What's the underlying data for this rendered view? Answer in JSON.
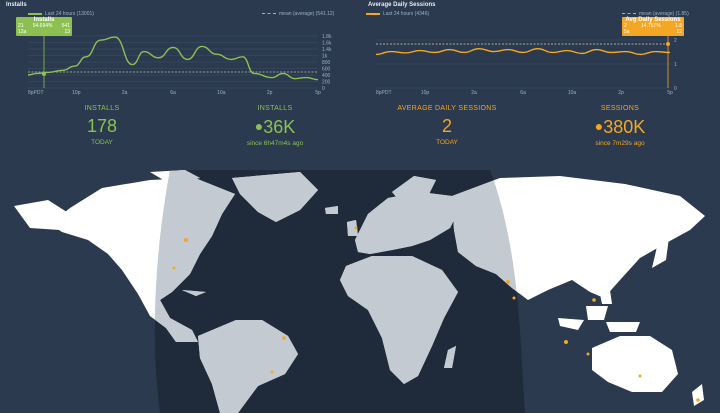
{
  "installs_chart": {
    "title": "Installs",
    "legend_series": "Last 24 hours (13001)",
    "legend_mean": "mean (average) (541.12)",
    "tooltip": {
      "title": "Installs",
      "left_top": "21",
      "left_bottom": "12a",
      "mid": "54.694%",
      "right_top": "541",
      "right_bottom": "13"
    },
    "y_ticks": [
      "1.8k",
      "1.6k",
      "1.4k",
      "1k",
      "800",
      "600",
      "400",
      "200",
      "0"
    ],
    "x_ticks": [
      "8pPDT",
      "10p",
      "2a",
      "6a",
      "10a",
      "2p",
      "5p"
    ],
    "colors": {
      "line": "#8cc152",
      "mean": "#b8c7a0"
    }
  },
  "sessions_chart": {
    "title": "Average Daily Sessions",
    "legend_series": "Last 24 hours (4346)",
    "legend_mean": "mean (average) (1.85)",
    "tooltip": {
      "title": "Avg Daily Sessions",
      "left_top": "2",
      "left_bottom": "5a",
      "mid": "14.757%",
      "right_top": "1.8",
      "right_bottom": "12"
    },
    "y_ticks": [
      "2",
      "1",
      "0"
    ],
    "x_ticks": [
      "8pPDT",
      "10p",
      "2a",
      "6a",
      "10a",
      "2p",
      "5p"
    ],
    "colors": {
      "line": "#f5a623",
      "mean": "#d9d0b8"
    }
  },
  "stats": [
    {
      "label": "INSTALLS",
      "value": "178",
      "sub": "TODAY",
      "dot": "",
      "color": "#8cc152"
    },
    {
      "label": "INSTALLS",
      "value": "36K",
      "sub": "since 6h47m4s ago",
      "dot": "●",
      "color": "#8cc152"
    },
    {
      "label": "AVERAGE DAILY SESSIONS",
      "value": "2",
      "sub": "TODAY",
      "dot": "",
      "color": "#f5a623"
    },
    {
      "label": "SESSIONS",
      "value": "380K",
      "sub": "since 7m29s ago",
      "dot": "●",
      "color": "#f5a623"
    }
  ],
  "map": {
    "colors": {
      "ocean": "#2b3a4e",
      "night": "#1f2b3b",
      "land_day": "#ffffff",
      "land_night": "#c4cad2",
      "marker": "#f5a623"
    }
  }
}
